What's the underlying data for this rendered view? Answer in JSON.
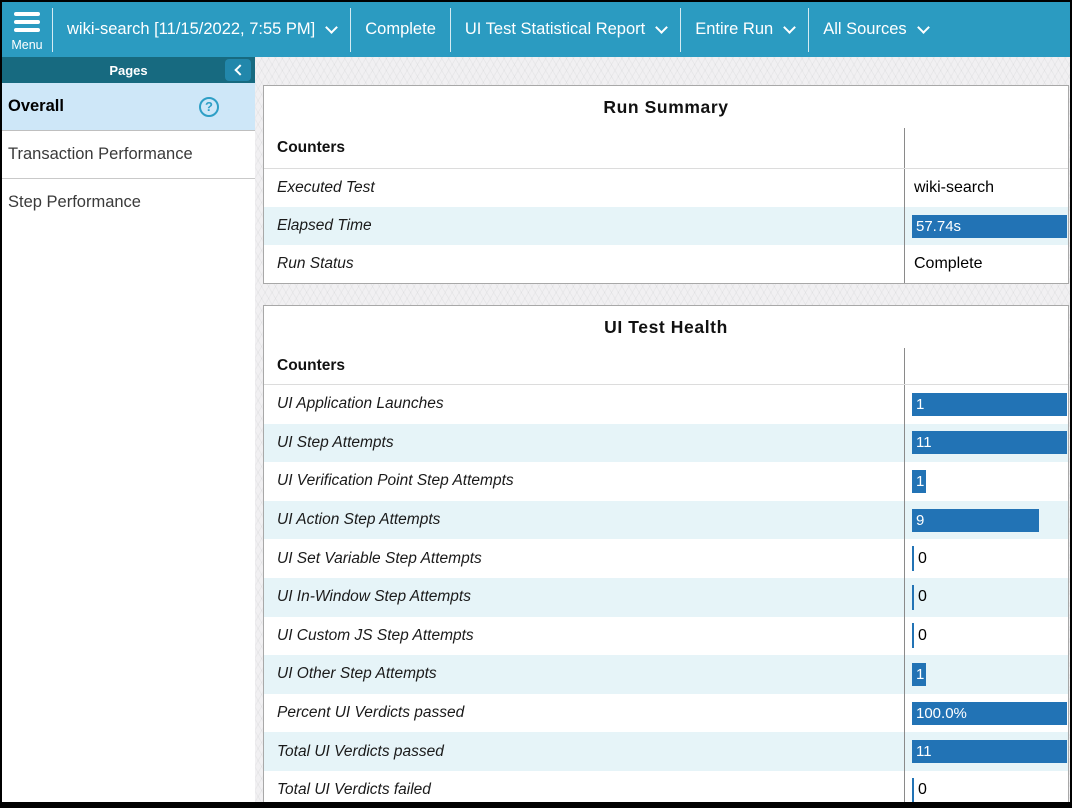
{
  "topbar": {
    "menu_label": "Menu",
    "run_selector": "wiki-search [11/15/2022, 7:55 PM]",
    "run_status_badge": "Complete",
    "report_selector": "UI Test Statistical Report",
    "scope_selector": "Entire Run",
    "sources_selector": "All Sources"
  },
  "sidebar": {
    "header": "Pages",
    "items": [
      {
        "label": "Overall",
        "selected": true
      },
      {
        "label": "Transaction Performance",
        "selected": false
      },
      {
        "label": "Step Performance",
        "selected": false
      }
    ]
  },
  "colors": {
    "topbar_teal": "#2B9BC1",
    "pages_header_teal": "#176A80",
    "selected_item_bg": "#CEE7F8",
    "bar_fill_blue": "#2273B5",
    "stripe_row_bg": "#E6F4F8"
  },
  "icons": {
    "menu": "hamburger-icon",
    "dropdown": "chevron-down-icon",
    "collapse": "chevron-left-icon",
    "help": "question-circle-icon"
  },
  "run_summary": {
    "title": "Run Summary",
    "column_header": "Counters",
    "rows": [
      {
        "label": "Executed Test",
        "value": "wiki-search",
        "type": "text"
      },
      {
        "label": "Elapsed Time",
        "value": "57.74s",
        "type": "bar",
        "pct": 100
      },
      {
        "label": "Run Status",
        "value": "Complete",
        "type": "text"
      }
    ]
  },
  "ui_test_health": {
    "title": "UI Test Health",
    "column_header": "Counters",
    "rows": [
      {
        "label": "UI Application Launches",
        "value": "1",
        "type": "bar",
        "pct": 100
      },
      {
        "label": "UI Step Attempts",
        "value": "11",
        "type": "bar",
        "pct": 100
      },
      {
        "label": "UI Verification Point Step Attempts",
        "value": "1",
        "type": "bar",
        "pct": 9.1
      },
      {
        "label": "UI Action Step Attempts",
        "value": "9",
        "type": "bar",
        "pct": 81.8
      },
      {
        "label": "UI Set Variable Step Attempts",
        "value": "0",
        "type": "zero"
      },
      {
        "label": "UI In-Window Step Attempts",
        "value": "0",
        "type": "zero"
      },
      {
        "label": "UI Custom JS Step Attempts",
        "value": "0",
        "type": "zero"
      },
      {
        "label": "UI Other Step Attempts",
        "value": "1",
        "type": "bar",
        "pct": 9.1
      },
      {
        "label": "Percent UI Verdicts passed",
        "value": "100.0%",
        "type": "bar",
        "pct": 100
      },
      {
        "label": "Total UI Verdicts passed",
        "value": "11",
        "type": "bar",
        "pct": 100
      },
      {
        "label": "Total UI Verdicts failed",
        "value": "0",
        "type": "zero"
      }
    ]
  }
}
